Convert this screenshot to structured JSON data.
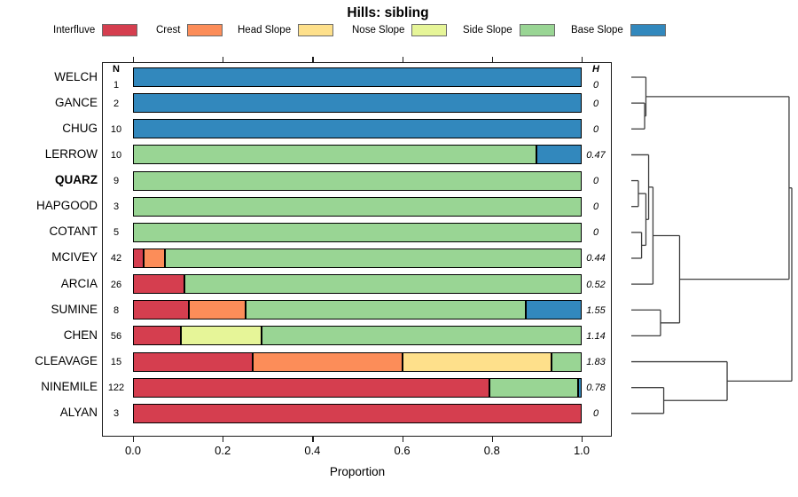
{
  "title": "Hills: sibling",
  "legend": {
    "items": [
      {
        "label": "Interfluve",
        "color": "#d53e4f"
      },
      {
        "label": "Crest",
        "color": "#fc8d59"
      },
      {
        "label": "Head Slope",
        "color": "#fee08b"
      },
      {
        "label": "Nose Slope",
        "color": "#e6f598"
      },
      {
        "label": "Side Slope",
        "color": "#99d594"
      },
      {
        "label": "Base Slope",
        "color": "#3288bd"
      }
    ]
  },
  "chart_data": {
    "type": "bar",
    "stacked": true,
    "orientation": "horizontal",
    "title": "Hills: sibling",
    "xlabel": "Proportion",
    "xlim": [
      0,
      1
    ],
    "x_ticks": [
      {
        "label": "0.0",
        "value": 0.0
      },
      {
        "label": "0.2",
        "value": 0.2
      },
      {
        "label": "0.4",
        "value": 0.4
      },
      {
        "label": "0.6",
        "value": 0.6
      },
      {
        "label": "0.8",
        "value": 0.8
      },
      {
        "label": "1.0",
        "value": 1.0
      }
    ],
    "columns": {
      "n_header": "N",
      "h_header": "H"
    },
    "categories": [
      "WELCH",
      "GANCE",
      "CHUG",
      "LERROW",
      "QUARZ",
      "HAPGOOD",
      "COTANT",
      "MCIVEY",
      "ARCIA",
      "SUMINE",
      "CHEN",
      "CLEAVAGE",
      "NINEMILE",
      "ALYAN"
    ],
    "bold_category": "QUARZ",
    "n_values": [
      "1",
      "2",
      "10",
      "10",
      "9",
      "3",
      "5",
      "42",
      "26",
      "8",
      "56",
      "15",
      "122",
      "3"
    ],
    "h_values": [
      "0",
      "0",
      "0",
      "0.47",
      "0",
      "0",
      "0",
      "0.44",
      "0.52",
      "1.55",
      "1.14",
      "1.83",
      "0.78",
      "0"
    ],
    "series": [
      {
        "name": "Interfluve",
        "color": "#d53e4f",
        "values": [
          0,
          0,
          0,
          0,
          0,
          0,
          0,
          0.024,
          0.115,
          0.125,
          0.107,
          0.267,
          0.795,
          1.0
        ]
      },
      {
        "name": "Crest",
        "color": "#fc8d59",
        "values": [
          0,
          0,
          0,
          0,
          0,
          0,
          0,
          0.048,
          0,
          0.125,
          0,
          0.333,
          0,
          0
        ]
      },
      {
        "name": "Head Slope",
        "color": "#fee08b",
        "values": [
          0,
          0,
          0,
          0,
          0,
          0,
          0,
          0,
          0,
          0,
          0,
          0.333,
          0,
          0
        ]
      },
      {
        "name": "Nose Slope",
        "color": "#e6f598",
        "values": [
          0,
          0,
          0,
          0,
          0,
          0,
          0,
          0,
          0,
          0,
          0.179,
          0,
          0,
          0
        ]
      },
      {
        "name": "Side Slope",
        "color": "#99d594",
        "values": [
          0,
          0,
          0,
          0.9,
          1,
          1,
          1,
          0.928,
          0.885,
          0.625,
          0.714,
          0.067,
          0.197,
          0
        ]
      },
      {
        "name": "Base Slope",
        "color": "#3288bd",
        "values": [
          1,
          1,
          1,
          0.1,
          0,
          0,
          0,
          0,
          0,
          0.125,
          0,
          0,
          0.008,
          0
        ]
      }
    ],
    "dendrogram": {
      "legend_note": "agglomerative tree drawn at right; heights normalized 0-1",
      "tree": {
        "h": 1.0,
        "children": [
          {
            "h": 0.983,
            "children": [
              {
                "h": 0.091,
                "children": [
                  "WELCH",
                  {
                    "h": 0.083,
                    "children": [
                      "GANCE",
                      "CHUG"
                    ]
                  }
                ]
              },
              {
                "h": 0.301,
                "children": [
                  {
                    "h": 0.135,
                    "children": [
                      {
                        "h": 0.108,
                        "children": [
                          "LERROW",
                          {
                            "h": 0.091,
                            "children": [
                              {
                                "h": 0.044,
                                "children": [
                                  "QUARZ",
                                  "HAPGOOD"
                                ]
                              },
                              {
                                "h": 0.064,
                                "children": [
                                  "COTANT",
                                  "MCIVEY"
                                ]
                              }
                            ]
                          }
                        ]
                      },
                      "ARCIA"
                    ]
                  },
                  {
                    "h": 0.182,
                    "children": [
                      "SUMINE",
                      "CHEN"
                    ]
                  }
                ]
              }
            ]
          },
          {
            "h": 0.597,
            "children": [
              "CLEAVAGE",
              {
                "h": 0.202,
                "children": [
                  "NINEMILE",
                  "ALYAN"
                ]
              }
            ]
          }
        ]
      }
    }
  }
}
